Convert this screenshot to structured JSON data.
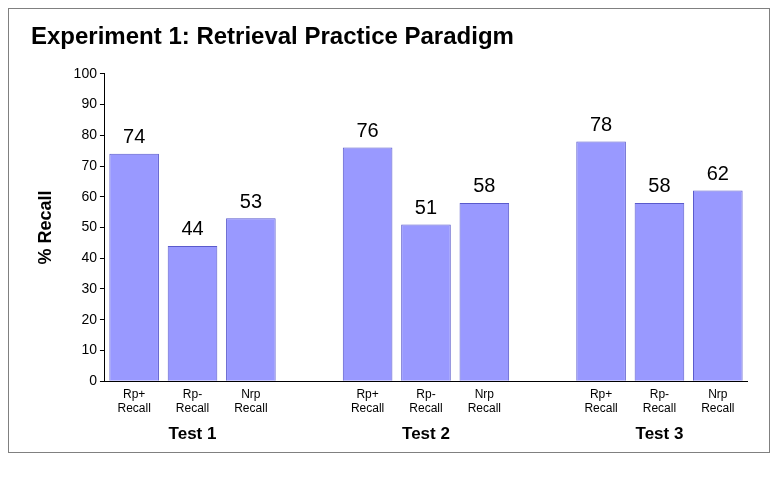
{
  "chart_data": {
    "type": "bar",
    "title": "Experiment 1: Retrieval Practice Paradigm",
    "y_label": "% Recall",
    "groups": [
      {
        "name": "Test 1",
        "categories": [
          "Rp+ Recall",
          "Rp- Recall",
          "Nrp Recall"
        ],
        "values": [
          74,
          44,
          53
        ]
      },
      {
        "name": "Test 2",
        "categories": [
          "Rp+ Recall",
          "Rp- Recall",
          "Nrp Recall"
        ],
        "values": [
          76,
          51,
          58
        ]
      },
      {
        "name": "Test 3",
        "categories": [
          "Rp+ Recall",
          "Rp- Recall",
          "Nrp Recall"
        ],
        "values": [
          78,
          58,
          62
        ]
      }
    ],
    "color": "#9999ff",
    "ylim": [
      0,
      100
    ],
    "yticks": [
      0,
      10,
      20,
      30,
      40,
      50,
      60,
      70,
      80,
      90,
      100
    ],
    "grid": false,
    "data_labels": true
  }
}
